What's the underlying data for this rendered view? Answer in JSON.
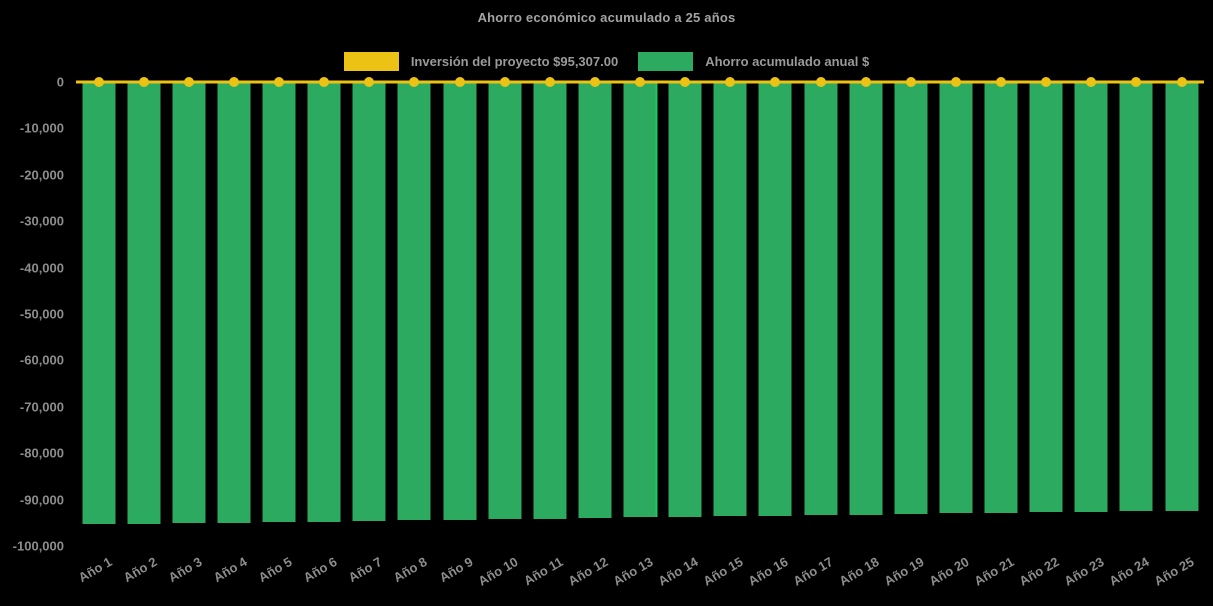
{
  "background": "#000000",
  "chart_data": {
    "type": "bar",
    "title": "Ahorro económico acumulado a 25 años",
    "categories": [
      "Año 1",
      "Año 2",
      "Año 3",
      "Año 4",
      "Año 5",
      "Año 6",
      "Año 7",
      "Año 8",
      "Año 9",
      "Año 10",
      "Año 11",
      "Año 12",
      "Año 13",
      "Año 14",
      "Año 15",
      "Año 16",
      "Año 17",
      "Año 18",
      "Año 19",
      "Año 20",
      "Año 21",
      "Año 22",
      "Año 23",
      "Año 24",
      "Año 25"
    ],
    "series": [
      {
        "name": "Inversión del proyecto $95,307.00",
        "type": "line",
        "marker": "circle",
        "color": "#ecc214",
        "values": [
          0,
          0,
          0,
          0,
          0,
          0,
          0,
          0,
          0,
          0,
          0,
          0,
          0,
          0,
          0,
          0,
          0,
          0,
          0,
          0,
          0,
          0,
          0,
          0,
          0
        ]
      },
      {
        "name": "Ahorro acumulado anual $",
        "type": "bar",
        "color": "#2baa60",
        "values": [
          -95350,
          -95225,
          -95100,
          -94975,
          -94850,
          -94725,
          -94600,
          -94475,
          -94350,
          -94225,
          -94100,
          -93975,
          -93850,
          -93725,
          -93600,
          -93475,
          -93350,
          -93225,
          -93100,
          -92975,
          -92850,
          -92725,
          -92600,
          -92475,
          -92350
        ]
      }
    ],
    "ylim": [
      -100000,
      0
    ],
    "ytick_step": 10000,
    "tick_label_color": "#8d8d8d",
    "grid": false,
    "legend_position": "top",
    "highlight_line": {
      "after_category_index": 12,
      "color": "#1cc85a"
    }
  }
}
